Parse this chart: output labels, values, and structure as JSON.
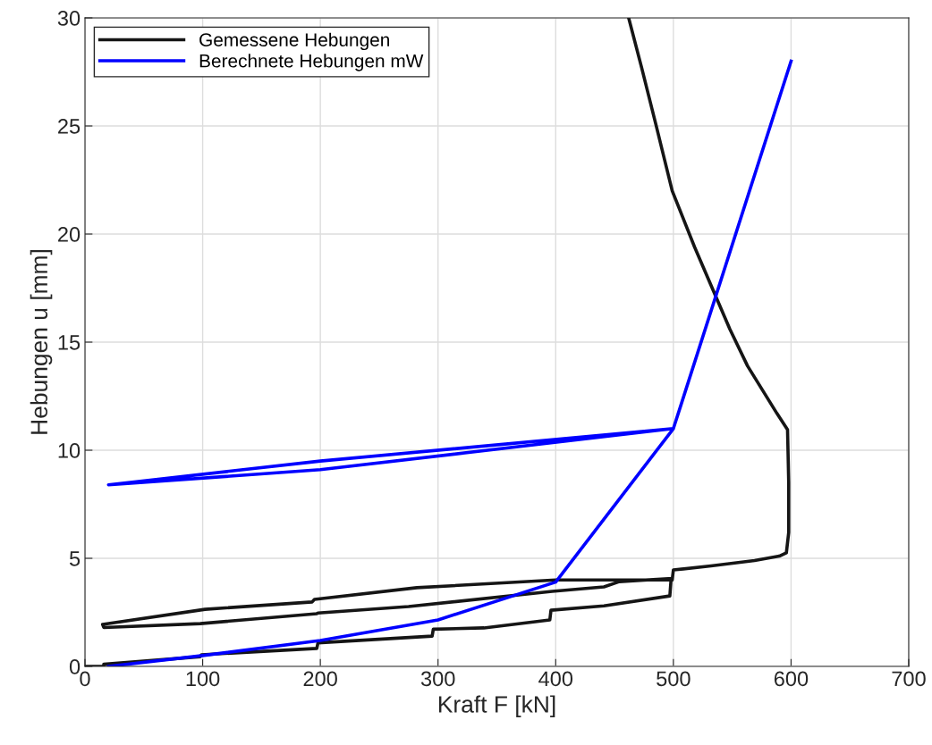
{
  "chart_data": {
    "type": "line",
    "xlabel": "Kraft F [kN]",
    "ylabel": "Hebungen u [mm]",
    "xlim": [
      0,
      700
    ],
    "ylim": [
      0,
      30
    ],
    "xticks": [
      0,
      100,
      200,
      300,
      400,
      500,
      600,
      700
    ],
    "yticks": [
      0,
      5,
      10,
      15,
      20,
      25,
      30
    ],
    "grid": true,
    "legend": "top left",
    "marker": "none",
    "line_style": "solid",
    "series": [
      {
        "name": "Gemessene Hebungen",
        "color": "#151515",
        "x": [
          0,
          16,
          16,
          98,
          99,
          197,
          198,
          295,
          296,
          339,
          395,
          396,
          441,
          497,
          498,
          499,
          454,
          441,
          397,
          275,
          198,
          197,
          98,
          16,
          15,
          102,
          193,
          195,
          282,
          400,
          499,
          500,
          532,
          569,
          590,
          596,
          598,
          598,
          597,
          588,
          563,
          548,
          518,
          499,
          485,
          473,
          462
        ],
        "values": [
          0,
          0,
          0.1,
          0.45,
          0.54,
          0.83,
          1.09,
          1.4,
          1.72,
          1.78,
          2.15,
          2.6,
          2.8,
          3.26,
          4.0,
          4.07,
          3.92,
          3.68,
          3.47,
          2.77,
          2.47,
          2.44,
          1.98,
          1.8,
          1.94,
          2.64,
          2.98,
          3.1,
          3.64,
          4.0,
          4.0,
          4.46,
          4.65,
          4.9,
          5.1,
          5.25,
          6.2,
          8.5,
          10.95,
          11.7,
          13.9,
          15.6,
          19.4,
          22.0,
          25.1,
          27.7,
          30
        ]
      },
      {
        "name": "Berechnete Hebungen mW",
        "color": "#0000ff",
        "x": [
          20,
          100,
          200,
          300,
          400,
          500,
          200,
          20,
          200,
          500,
          600
        ],
        "values": [
          0,
          0.5,
          1.2,
          2.15,
          3.9,
          11,
          9.1,
          8.4,
          9.5,
          11,
          28
        ]
      }
    ]
  }
}
